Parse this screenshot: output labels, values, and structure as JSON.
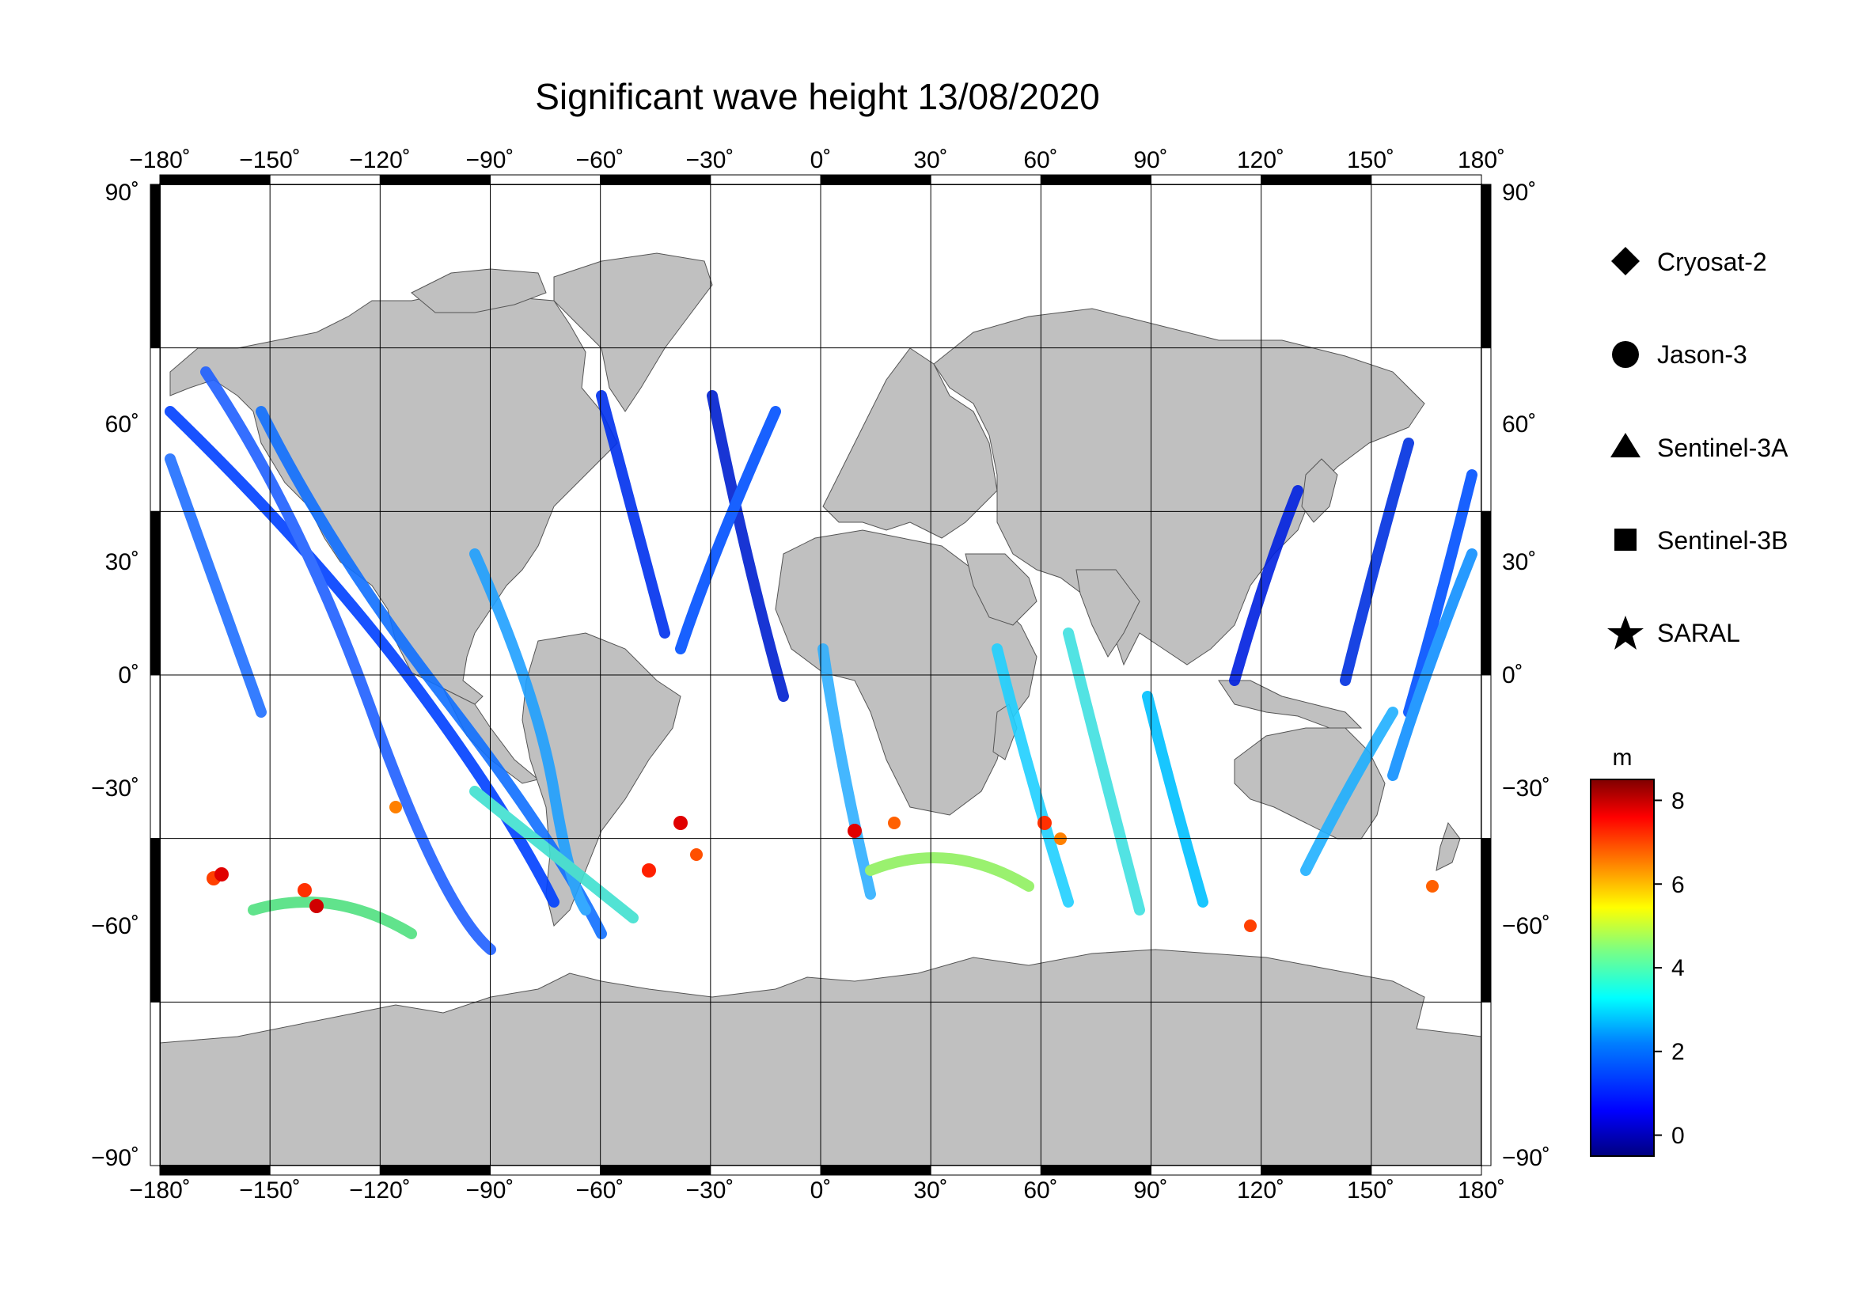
{
  "title": "Significant wave height 13/08/2020",
  "axes": {
    "lon_ticks": [
      "−180˚",
      "−150˚",
      "−120˚",
      "−90˚",
      "−60˚",
      "−30˚",
      "0˚",
      "30˚",
      "60˚",
      "90˚",
      "120˚",
      "150˚",
      "180˚"
    ],
    "lat_ticks_left": [
      "90˚",
      "60˚",
      "30˚",
      "0˚",
      "−30˚",
      "−60˚",
      "−90˚"
    ],
    "lat_ticks_right": [
      "90˚",
      "60˚",
      "30˚",
      "0˚",
      "−30˚",
      "−60˚",
      "−90˚"
    ],
    "lon_range": [
      -180,
      180
    ],
    "lat_range": [
      -90,
      90
    ],
    "grid": true
  },
  "legend": {
    "placement": "right",
    "items": [
      {
        "label": "Cryosat-2",
        "symbol": "diamond"
      },
      {
        "label": "Jason-3",
        "symbol": "circle"
      },
      {
        "label": "Sentinel-3A",
        "symbol": "triangle"
      },
      {
        "label": "Sentinel-3B",
        "symbol": "square"
      },
      {
        "label": "SARAL",
        "symbol": "star"
      }
    ]
  },
  "colorbar": {
    "unit": "m",
    "ticks": [
      "8",
      "6",
      "4",
      "2",
      "0"
    ],
    "range": [
      -0.5,
      8.5
    ],
    "colormap": [
      "#00007f",
      "#0000ff",
      "#007fff",
      "#00ffff",
      "#7fff7f",
      "#ffff00",
      "#ff7f00",
      "#ff0000",
      "#7f0000"
    ]
  },
  "colors": {
    "land": "#c0c0c0",
    "ocean": "#ffffff",
    "grid": "#000000"
  }
}
